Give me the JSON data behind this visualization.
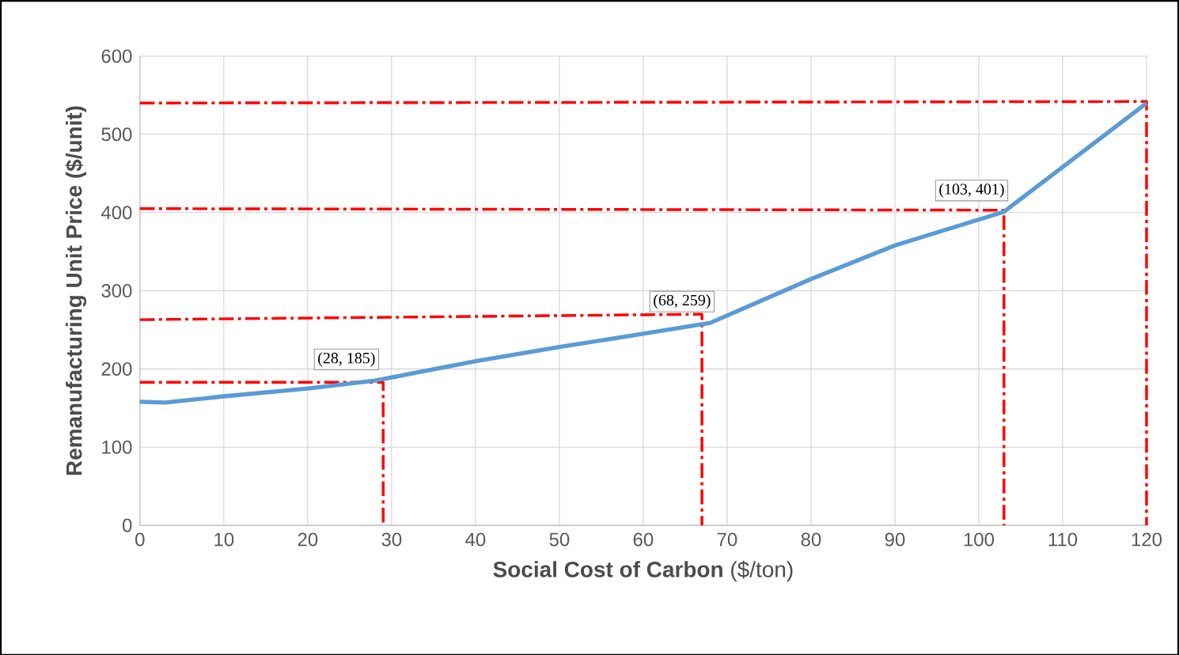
{
  "chart_data": {
    "type": "line",
    "xlabel": "**Social Cost of Carbon** ($/ton)",
    "ylabel": "Remanufacturing Unit Price ($/unit)",
    "series": [
      {
        "color": "#5b9bd5",
        "x": [
          0,
          3,
          10,
          20,
          28,
          40,
          50,
          60,
          68,
          80,
          90,
          103,
          120
        ],
        "values": [
          158,
          157,
          165,
          175,
          185,
          210,
          228,
          245,
          259,
          315,
          358,
          401,
          540
        ]
      },
      {
        "color": "#ff0000",
        "line_style": "dashed",
        "x": [
          0,
          29,
          29
        ],
        "values": [
          183,
          183,
          0
        ]
      },
      {
        "color": "#ff0000",
        "line_style": "dashed",
        "x": [
          0,
          67,
          67
        ],
        "values": [
          263,
          270,
          0
        ]
      },
      {
        "color": "#ff0000",
        "line_style": "dashed",
        "x": [
          0,
          103,
          103
        ],
        "values": [
          405,
          403,
          0
        ]
      },
      {
        "color": "#ff0000",
        "line_style": "dashed",
        "x": [
          0,
          120,
          120
        ],
        "values": [
          540,
          542,
          0
        ]
      }
    ],
    "annotations": [
      {
        "text": "(28, 185)",
        "x": 28,
        "y": 185
      },
      {
        "text": "(68, 259)",
        "x": 68,
        "y": 259
      },
      {
        "text": "(103, 401)",
        "x": 103,
        "y": 401
      }
    ],
    "xlim": [
      0,
      120
    ],
    "ylim": [
      0,
      600
    ],
    "xticks": [
      0,
      10,
      20,
      30,
      40,
      50,
      60,
      70,
      80,
      90,
      100,
      110,
      120
    ],
    "yticks": [
      0,
      100,
      200,
      300,
      400,
      500,
      600
    ],
    "grid": true,
    "line_style": "solid"
  }
}
